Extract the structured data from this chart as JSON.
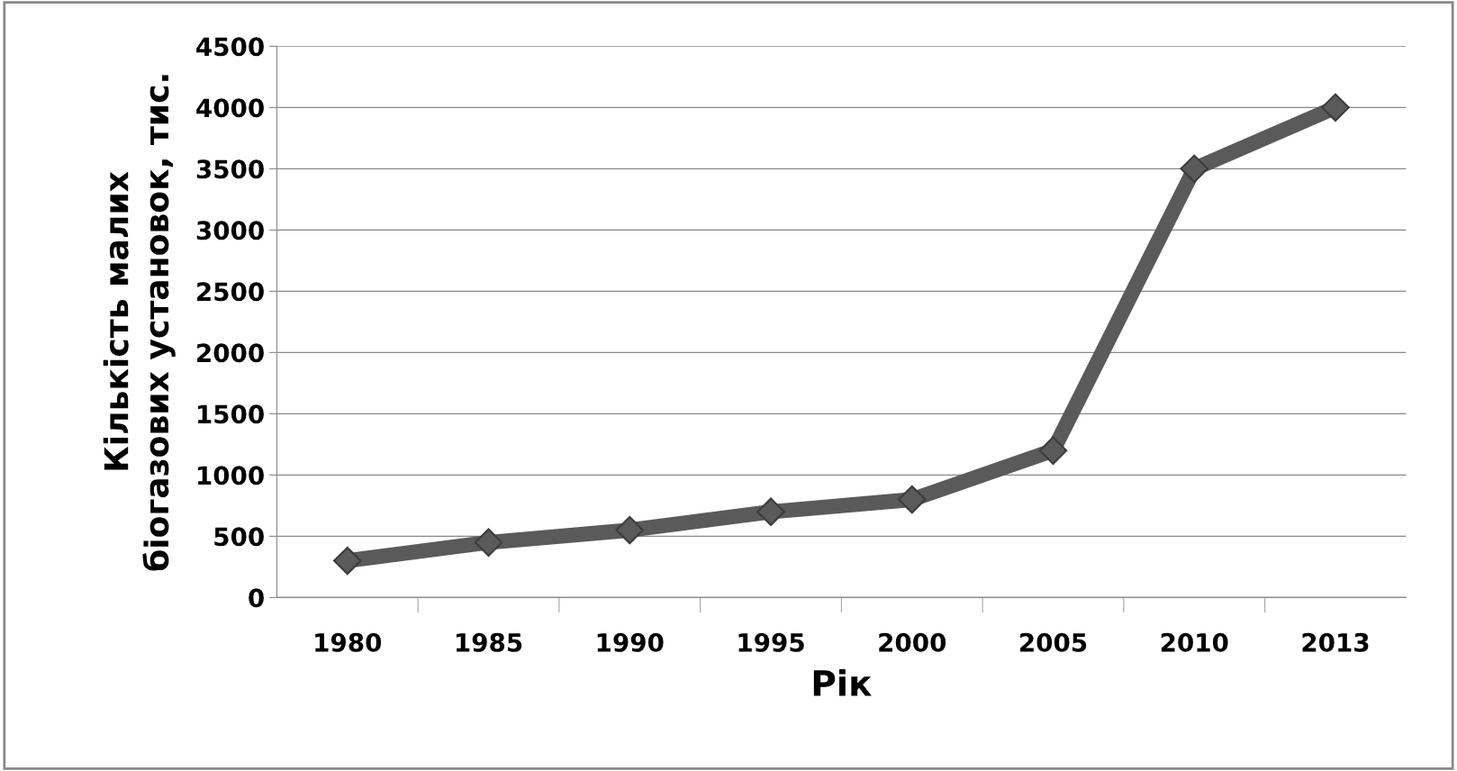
{
  "chart_data": {
    "type": "line",
    "xlabel": "Рік",
    "ylabel": "Кількість малих\nбіогазових установок, тис.",
    "categories": [
      "1980",
      "1985",
      "1990",
      "1995",
      "2000",
      "2005",
      "2010",
      "2013"
    ],
    "series": [
      {
        "color": "#5a5a5a",
        "values": [
          300,
          450,
          550,
          700,
          800,
          1200,
          3500,
          4000
        ]
      }
    ],
    "ylim": [
      0,
      4500
    ],
    "yticks": [
      0,
      500,
      1000,
      1500,
      2000,
      2500,
      3000,
      3500,
      4000,
      4500
    ],
    "grid": "y",
    "marker": "diamond",
    "line_style": "solid"
  }
}
